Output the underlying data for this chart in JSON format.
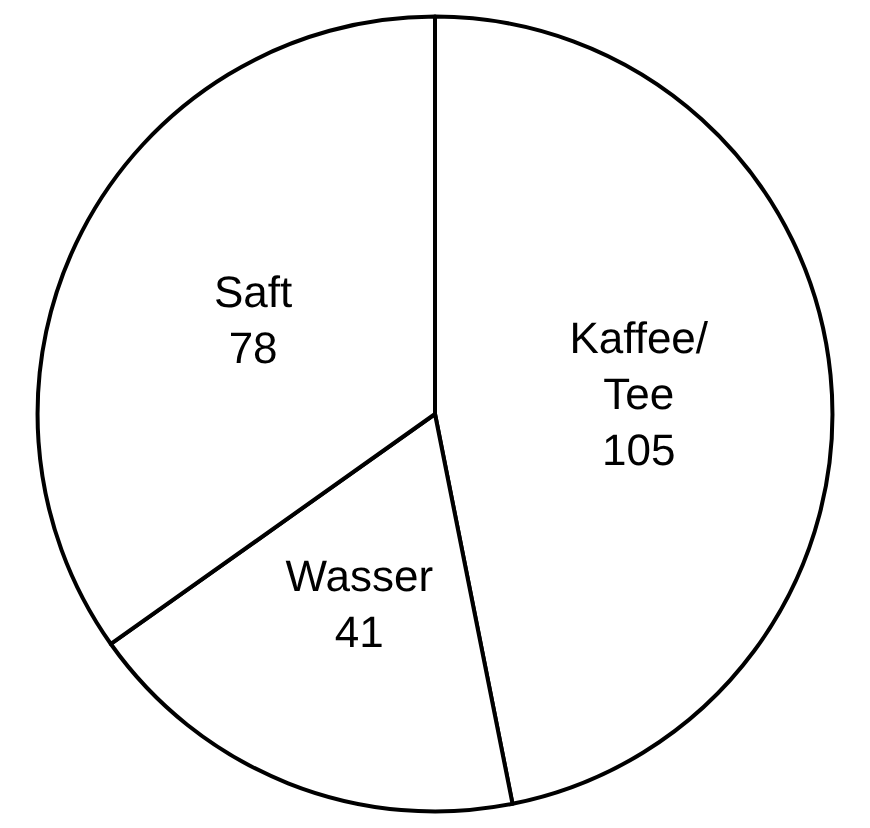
{
  "chart_data": {
    "type": "pie",
    "categories": [
      "Kaffee/Tee",
      "Wasser",
      "Saft"
    ],
    "values": [
      105,
      41,
      78
    ],
    "colors": [
      "#ffffff",
      "#ffffff",
      "#ffffff"
    ],
    "data_labels": true,
    "legend": false
  }
}
